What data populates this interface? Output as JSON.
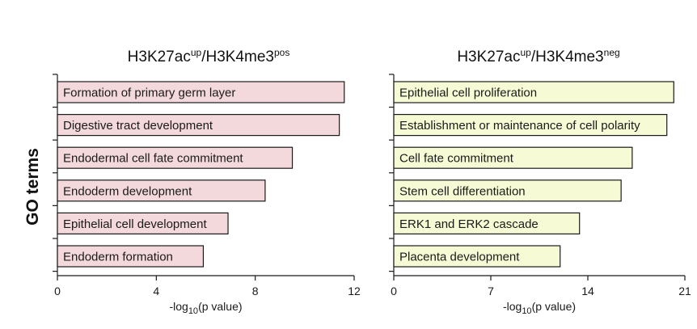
{
  "ylabel": "GO terms",
  "chart_data": [
    {
      "type": "bar",
      "orientation": "horizontal",
      "title": {
        "base1": "H3K27ac",
        "sup1": "up",
        "base2": "/H3K4me3",
        "sup2": "pos"
      },
      "xlabel": {
        "pre": "-log",
        "sub": "10",
        "post": "(p value)"
      },
      "categories": [
        "Formation of primary germ layer",
        "Digestive tract development",
        "Endodermal cell fate commitment",
        "Endoderm development",
        "Epithelial cell development",
        "Endoderm formation"
      ],
      "values": [
        11.6,
        11.4,
        9.5,
        8.4,
        6.9,
        5.9
      ],
      "xlim": [
        0,
        12
      ],
      "xticks": [
        0,
        4,
        8,
        12
      ],
      "bar_color": "#f3d9dc",
      "stroke_color": "#1a1a1a"
    },
    {
      "type": "bar",
      "orientation": "horizontal",
      "title": {
        "base1": "H3K27ac",
        "sup1": "up",
        "base2": "/H3K4me3",
        "sup2": "neg"
      },
      "xlabel": {
        "pre": "-log",
        "sub": "10",
        "post": "(p value)"
      },
      "categories": [
        "Epithelial cell proliferation",
        "Establishment or maintenance of cell polarity",
        "Cell fate commitment",
        "Stem cell differentiation",
        "ERK1 and ERK2 cascade",
        "Placenta development"
      ],
      "values": [
        20.2,
        19.7,
        17.2,
        16.4,
        13.4,
        12.0
      ],
      "xlim": [
        0,
        21
      ],
      "xticks": [
        0,
        7,
        14,
        21
      ],
      "bar_color": "#f6fbd5",
      "stroke_color": "#1a1a1a"
    }
  ]
}
